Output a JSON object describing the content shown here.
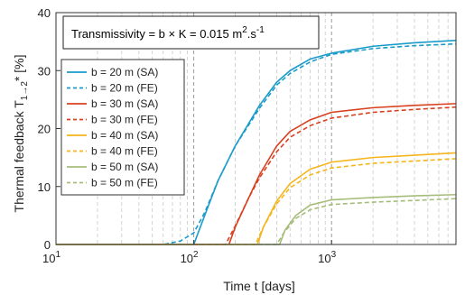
{
  "chart_data": {
    "type": "line",
    "x_scale": "log",
    "xlim": [
      10,
      8000
    ],
    "ylim": [
      0,
      40
    ],
    "grid": {
      "x_major": true,
      "x_minor": true,
      "y": false
    },
    "xlabel": "Time t [days]",
    "ylabel_prefix": "Thermal feedback T",
    "ylabel_sub": "1→2",
    "ylabel_suffix": "* [%]",
    "x_ticks": [
      {
        "value": 10,
        "base": "10",
        "exp": "1"
      },
      {
        "value": 100,
        "base": "10",
        "exp": "2"
      },
      {
        "value": 1000,
        "base": "10",
        "exp": "3"
      }
    ],
    "y_ticks": [
      "0",
      "10",
      "20",
      "30",
      "40"
    ],
    "annotation": {
      "prefix": "Transmissivity = b × K = 0.015 m",
      "sup1": "2",
      "middle": ".s",
      "sup2": "-1"
    },
    "legend_position": "left",
    "series": [
      {
        "name": "b = 20 m (SA)",
        "color": "#1a9bc9",
        "dash": "solid",
        "points": [
          [
            100,
            0
          ],
          [
            120,
            5
          ],
          [
            150,
            11
          ],
          [
            200,
            17
          ],
          [
            300,
            24
          ],
          [
            400,
            28
          ],
          [
            500,
            30
          ],
          [
            700,
            32
          ],
          [
            1000,
            33
          ],
          [
            2000,
            34.2
          ],
          [
            4000,
            34.8
          ],
          [
            8000,
            35.2
          ]
        ]
      },
      {
        "name": "b = 20 m (FE)",
        "color": "#1a9bc9",
        "dash": "dashed",
        "points": [
          [
            60,
            0
          ],
          [
            80,
            0.6
          ],
          [
            100,
            2
          ],
          [
            120,
            5.5
          ],
          [
            150,
            11
          ],
          [
            200,
            17
          ],
          [
            300,
            23.5
          ],
          [
            400,
            27.5
          ],
          [
            500,
            29.5
          ],
          [
            700,
            31.5
          ],
          [
            1000,
            32.8
          ],
          [
            2000,
            33.8
          ],
          [
            4000,
            34.3
          ],
          [
            8000,
            34.6
          ]
        ]
      },
      {
        "name": "b = 30 m (SA)",
        "color": "#d9401f",
        "dash": "solid",
        "points": [
          [
            180,
            0
          ],
          [
            200,
            3
          ],
          [
            250,
            8
          ],
          [
            300,
            12
          ],
          [
            400,
            17
          ],
          [
            500,
            19.5
          ],
          [
            700,
            21.5
          ],
          [
            1000,
            22.8
          ],
          [
            2000,
            23.6
          ],
          [
            4000,
            24.0
          ],
          [
            8000,
            24.3
          ]
        ]
      },
      {
        "name": "b = 30 m (FE)",
        "color": "#d9401f",
        "dash": "dashed",
        "points": [
          [
            170,
            0
          ],
          [
            200,
            3.2
          ],
          [
            250,
            8
          ],
          [
            300,
            11.5
          ],
          [
            400,
            16
          ],
          [
            500,
            18.5
          ],
          [
            700,
            20.5
          ],
          [
            1000,
            21.8
          ],
          [
            2000,
            22.8
          ],
          [
            4000,
            23.3
          ],
          [
            8000,
            23.7
          ]
        ]
      },
      {
        "name": "b = 40 m (SA)",
        "color": "#f5b51c",
        "dash": "solid",
        "points": [
          [
            290,
            0
          ],
          [
            320,
            3
          ],
          [
            400,
            7.5
          ],
          [
            500,
            10.5
          ],
          [
            700,
            13
          ],
          [
            1000,
            14.2
          ],
          [
            2000,
            15
          ],
          [
            4000,
            15.4
          ],
          [
            8000,
            15.8
          ]
        ]
      },
      {
        "name": "b = 40 m (FE)",
        "color": "#f5b51c",
        "dash": "dashed",
        "points": [
          [
            280,
            0
          ],
          [
            320,
            3
          ],
          [
            400,
            7
          ],
          [
            500,
            9.8
          ],
          [
            700,
            12
          ],
          [
            1000,
            13.2
          ],
          [
            2000,
            14
          ],
          [
            4000,
            14.4
          ],
          [
            8000,
            14.8
          ]
        ]
      },
      {
        "name": "b = 50 m (SA)",
        "color": "#a6bd7a",
        "dash": "solid",
        "points": [
          [
            420,
            0
          ],
          [
            460,
            2.5
          ],
          [
            550,
            5
          ],
          [
            700,
            6.8
          ],
          [
            1000,
            7.7
          ],
          [
            2000,
            8.1
          ],
          [
            4000,
            8.4
          ],
          [
            8000,
            8.6
          ]
        ]
      },
      {
        "name": "b = 50 m (FE)",
        "color": "#a6bd7a",
        "dash": "dashed",
        "points": [
          [
            400,
            0
          ],
          [
            450,
            2
          ],
          [
            550,
            4.5
          ],
          [
            700,
            6
          ],
          [
            1000,
            6.9
          ],
          [
            2000,
            7.3
          ],
          [
            4000,
            7.6
          ],
          [
            8000,
            7.9
          ]
        ]
      }
    ]
  }
}
